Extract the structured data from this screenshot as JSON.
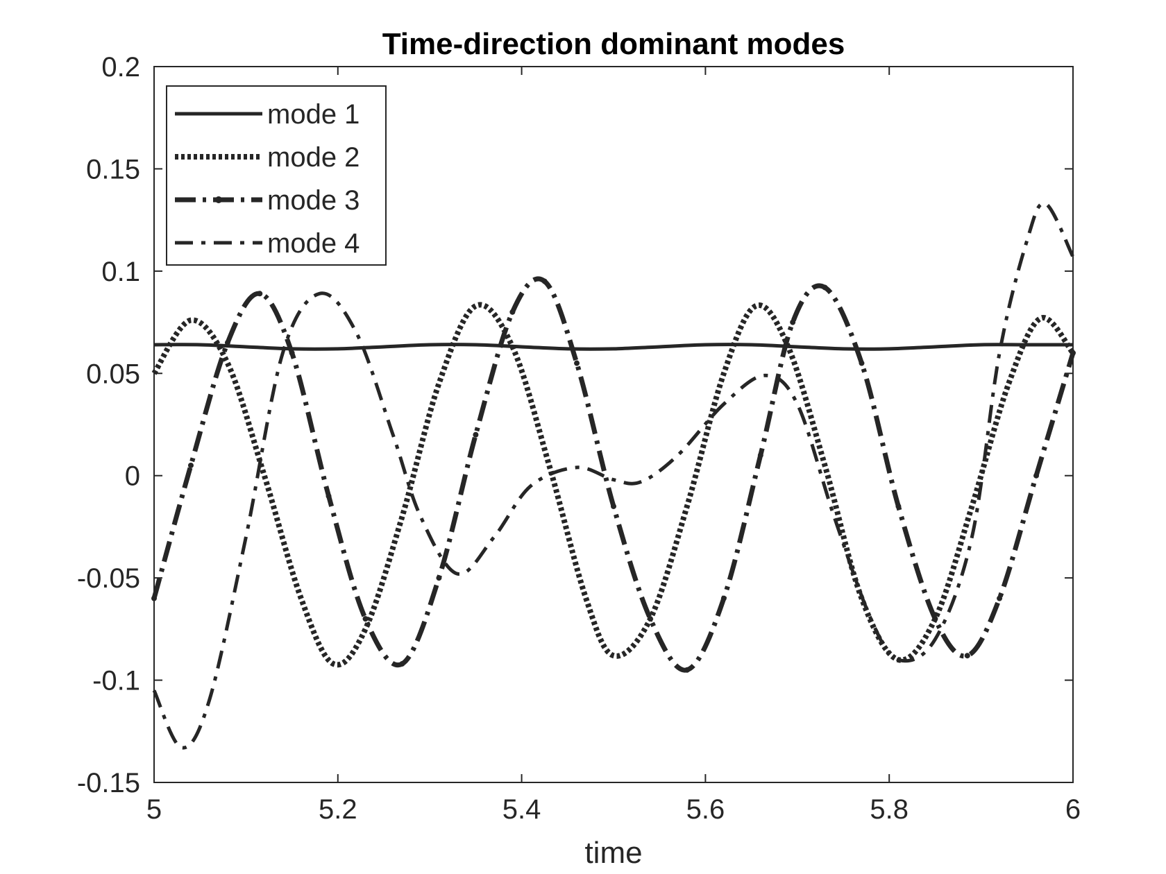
{
  "chart_data": {
    "type": "line",
    "title": "Time-direction dominant modes",
    "xlabel": "time",
    "ylabel": "",
    "xlim": [
      5,
      6
    ],
    "ylim": [
      -0.15,
      0.2
    ],
    "xticks": [
      5,
      5.2,
      5.4,
      5.6,
      5.8,
      6
    ],
    "xtick_labels": [
      "5",
      "5.2",
      "5.4",
      "5.6",
      "5.8",
      "6"
    ],
    "yticks": [
      -0.15,
      -0.1,
      -0.05,
      0,
      0.05,
      0.1,
      0.15,
      0.2
    ],
    "ytick_labels": [
      "-0.15",
      "-0.1",
      "-0.05",
      "0",
      "0.05",
      "0.1",
      "0.15",
      "0.2"
    ],
    "grid": false,
    "legend_position": "top-left",
    "line_color": "#262626",
    "series": [
      {
        "name": "mode 1",
        "style": "solid",
        "x": [
          5.0,
          5.05,
          5.1,
          5.15,
          5.2,
          5.25,
          5.3,
          5.35,
          5.4,
          5.45,
          5.5,
          5.55,
          5.6,
          5.65,
          5.7,
          5.75,
          5.8,
          5.85,
          5.9,
          5.95,
          6.0
        ],
        "y": [
          0.064,
          0.064,
          0.063,
          0.062,
          0.062,
          0.063,
          0.064,
          0.064,
          0.063,
          0.062,
          0.062,
          0.063,
          0.064,
          0.064,
          0.063,
          0.062,
          0.062,
          0.063,
          0.064,
          0.064,
          0.064
        ]
      },
      {
        "name": "mode 2",
        "style": "dotted",
        "x": [
          5.0,
          5.04,
          5.08,
          5.12,
          5.16,
          5.195,
          5.23,
          5.27,
          5.31,
          5.35,
          5.39,
          5.43,
          5.47,
          5.5,
          5.54,
          5.58,
          5.62,
          5.655,
          5.69,
          5.73,
          5.77,
          5.81,
          5.85,
          5.89,
          5.93,
          5.965,
          6.0
        ],
        "y": [
          0.05,
          0.076,
          0.055,
          0.0,
          -0.06,
          -0.092,
          -0.075,
          -0.02,
          0.045,
          0.083,
          0.063,
          0.005,
          -0.06,
          -0.088,
          -0.07,
          -0.015,
          0.05,
          0.083,
          0.063,
          0.005,
          -0.06,
          -0.09,
          -0.07,
          -0.015,
          0.045,
          0.077,
          0.06
        ]
      },
      {
        "name": "mode 3",
        "style": "dash-dot-marker",
        "x": [
          5.0,
          5.04,
          5.08,
          5.115,
          5.15,
          5.19,
          5.23,
          5.27,
          5.31,
          5.35,
          5.39,
          5.425,
          5.46,
          5.5,
          5.54,
          5.58,
          5.62,
          5.66,
          5.695,
          5.73,
          5.77,
          5.81,
          5.85,
          5.885,
          5.92,
          5.96,
          6.0
        ],
        "y": [
          -0.06,
          0.005,
          0.065,
          0.089,
          0.06,
          -0.01,
          -0.07,
          -0.092,
          -0.05,
          0.02,
          0.08,
          0.095,
          0.055,
          -0.015,
          -0.07,
          -0.095,
          -0.06,
          0.01,
          0.075,
          0.092,
          0.055,
          -0.015,
          -0.07,
          -0.088,
          -0.06,
          0.0,
          0.06
        ]
      },
      {
        "name": "mode 4",
        "style": "dash-dot",
        "x": [
          5.0,
          5.03,
          5.06,
          5.1,
          5.14,
          5.18,
          5.22,
          5.26,
          5.29,
          5.33,
          5.37,
          5.41,
          5.46,
          5.5,
          5.53,
          5.57,
          5.62,
          5.665,
          5.7,
          5.74,
          5.78,
          5.81,
          5.85,
          5.89,
          5.92,
          5.95,
          5.97,
          6.0
        ],
        "y": [
          -0.105,
          -0.133,
          -0.11,
          -0.03,
          0.06,
          0.089,
          0.07,
          0.02,
          -0.02,
          -0.048,
          -0.03,
          -0.005,
          0.004,
          -0.002,
          -0.003,
          0.01,
          0.035,
          0.049,
          0.035,
          -0.02,
          -0.07,
          -0.09,
          -0.08,
          -0.03,
          0.06,
          0.115,
          0.133,
          0.107
        ]
      }
    ]
  }
}
